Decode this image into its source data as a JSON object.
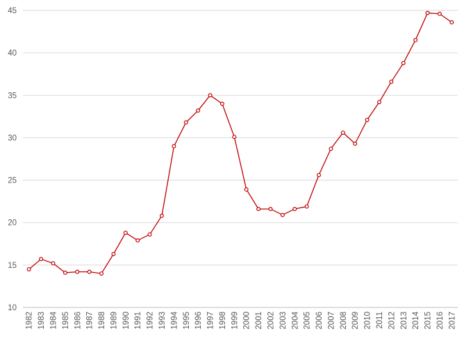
{
  "chart_data": {
    "type": "line",
    "title": "",
    "xlabel": "",
    "ylabel": "",
    "ylim": [
      10,
      45
    ],
    "yticks": [
      10,
      15,
      20,
      25,
      30,
      35,
      40,
      45
    ],
    "grid": true,
    "legend": "none",
    "colors": {
      "series": "#c00000",
      "grid": "#d9d9d9",
      "axis": "#bfbfbf",
      "text": "#595959"
    },
    "categories": [
      "1982",
      "1983",
      "1984",
      "1985",
      "1986",
      "1987",
      "1988",
      "1989",
      "1990",
      "1991",
      "1992",
      "1993",
      "1994",
      "1995",
      "1996",
      "1997",
      "1998",
      "1999",
      "2000",
      "2001",
      "2002",
      "2003",
      "2004",
      "2005",
      "2006",
      "2007",
      "2008",
      "2009",
      "2010",
      "2011",
      "2012",
      "2013",
      "2014",
      "2015",
      "2016",
      "2017"
    ],
    "series": [
      {
        "values": [
          14.5,
          15.7,
          15.2,
          14.1,
          14.2,
          14.2,
          14.0,
          16.3,
          18.8,
          17.9,
          18.6,
          20.8,
          29.0,
          31.8,
          33.2,
          35.0,
          34.0,
          30.1,
          23.9,
          21.6,
          21.6,
          20.9,
          21.6,
          21.9,
          25.6,
          28.7,
          30.6,
          29.3,
          32.1,
          34.2,
          36.6,
          38.8,
          41.5,
          44.7,
          44.6,
          43.6
        ]
      }
    ]
  }
}
